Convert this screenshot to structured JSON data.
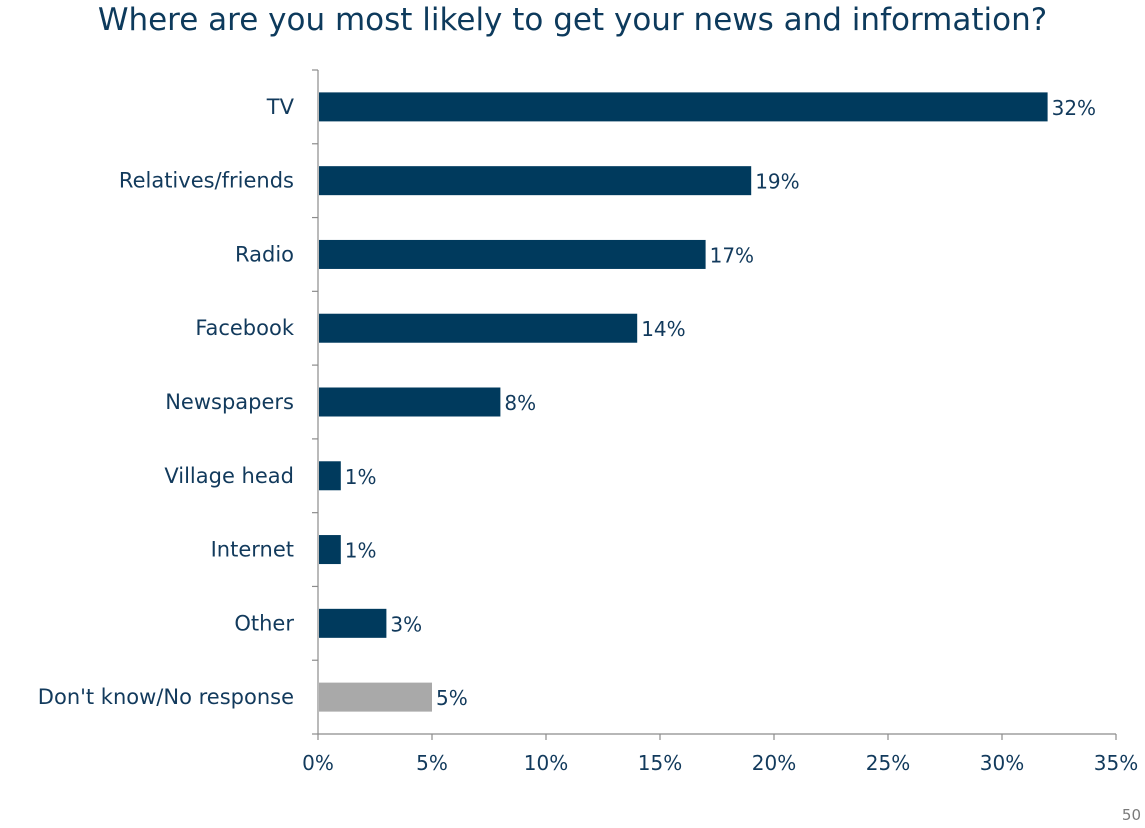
{
  "chart_data": {
    "type": "bar",
    "orientation": "horizontal",
    "title": "Where are you most likely to get your news and information?",
    "categories": [
      "TV",
      "Relatives/friends",
      "Radio",
      "Facebook",
      "Newspapers",
      "Village head",
      "Internet",
      "Other",
      "Don't know/No response"
    ],
    "values": [
      32,
      19,
      17,
      14,
      8,
      1,
      1,
      3,
      5
    ],
    "value_labels": [
      "32%",
      "19%",
      "17%",
      "14%",
      "8%",
      "1%",
      "1%",
      "3%",
      "5%"
    ],
    "colors": [
      "#003a5d",
      "#003a5d",
      "#003a5d",
      "#003a5d",
      "#003a5d",
      "#003a5d",
      "#003a5d",
      "#003a5d",
      "#a9a9a9"
    ],
    "xlim": [
      0,
      35
    ],
    "xticks": [
      0,
      5,
      10,
      15,
      20,
      25,
      30,
      35
    ],
    "xtick_labels": [
      "0%",
      "5%",
      "10%",
      "15%",
      "20%",
      "25%",
      "30%",
      "35%"
    ],
    "grid": false,
    "legend": "none"
  },
  "page_number": "50"
}
